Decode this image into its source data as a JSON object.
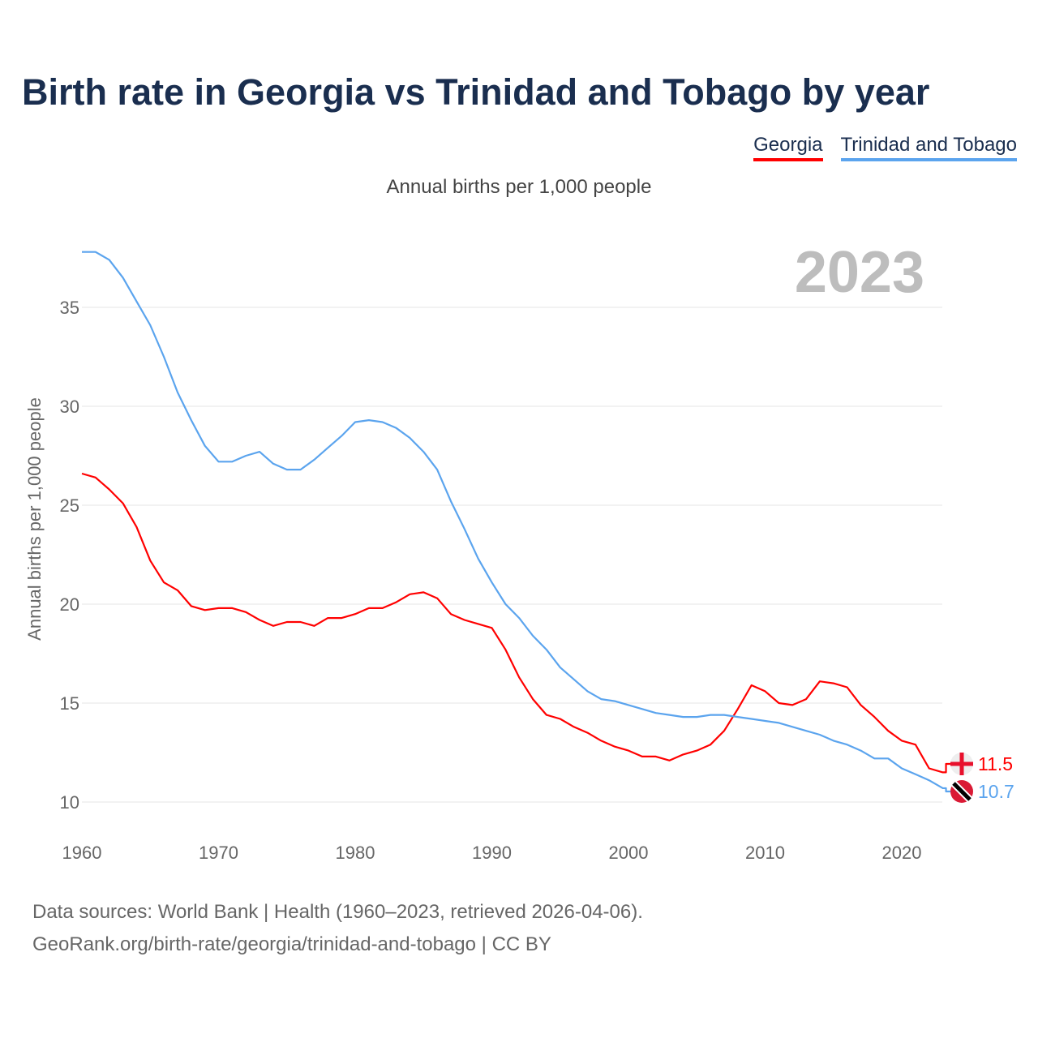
{
  "title": "Birth rate in Georgia vs Trinidad and Tobago by year",
  "legend": [
    "Georgia",
    "Trinidad and Tobago"
  ],
  "footer": {
    "line1": "Data sources: World Bank | Health (1960–2023, retrieved 2026-04-06).",
    "line2": "GeoRank.org/birth-rate/georgia/trinidad-and-tobago | CC BY"
  },
  "chart_data": {
    "type": "line",
    "title": "Birth rate in Georgia vs Trinidad and Tobago by year",
    "subtitle": "Annual births per 1,000 people",
    "ylabel": "Annual births per 1,000 people",
    "xlabel": "",
    "year_watermark": "2023",
    "xlim": [
      1960,
      2023
    ],
    "ylim": [
      8.5,
      38.5
    ],
    "xticks": [
      1960,
      1970,
      1980,
      1990,
      2000,
      2010,
      2020
    ],
    "yticks": [
      10,
      15,
      20,
      25,
      30,
      35
    ],
    "grid": true,
    "legend_position": "top-right",
    "x_start": 1960,
    "series": [
      {
        "name": "Georgia",
        "color": "#ff0000",
        "end_label": "11.5",
        "values": [
          26.6,
          26.4,
          25.8,
          25.1,
          23.9,
          22.2,
          21.1,
          20.7,
          19.9,
          19.7,
          19.8,
          19.8,
          19.6,
          19.2,
          18.9,
          19.1,
          19.1,
          18.9,
          19.3,
          19.3,
          19.5,
          19.8,
          19.8,
          20.1,
          20.5,
          20.6,
          20.3,
          19.5,
          19.2,
          19.0,
          18.8,
          17.7,
          16.3,
          15.2,
          14.4,
          14.2,
          13.8,
          13.5,
          13.1,
          12.8,
          12.6,
          12.3,
          12.3,
          12.1,
          12.4,
          12.6,
          12.9,
          13.6,
          14.7,
          15.9,
          15.6,
          15.0,
          14.9,
          15.2,
          16.1,
          16.0,
          15.8,
          14.9,
          14.3,
          13.6,
          13.1,
          12.9,
          11.7,
          11.5
        ]
      },
      {
        "name": "Trinidad and Tobago",
        "color": "#5ba4ee",
        "end_label": "10.7",
        "values": [
          37.8,
          37.8,
          37.4,
          36.5,
          35.3,
          34.1,
          32.5,
          30.7,
          29.3,
          28.0,
          27.2,
          27.2,
          27.5,
          27.7,
          27.1,
          26.8,
          26.8,
          27.3,
          27.9,
          28.5,
          29.2,
          29.3,
          29.2,
          28.9,
          28.4,
          27.7,
          26.8,
          25.2,
          23.8,
          22.3,
          21.1,
          20.0,
          19.3,
          18.4,
          17.7,
          16.8,
          16.2,
          15.6,
          15.2,
          15.1,
          14.9,
          14.7,
          14.5,
          14.4,
          14.3,
          14.3,
          14.4,
          14.4,
          14.3,
          14.2,
          14.1,
          14.0,
          13.8,
          13.6,
          13.4,
          13.1,
          12.9,
          12.6,
          12.2,
          12.2,
          11.7,
          11.4,
          11.1,
          10.7
        ]
      }
    ]
  }
}
